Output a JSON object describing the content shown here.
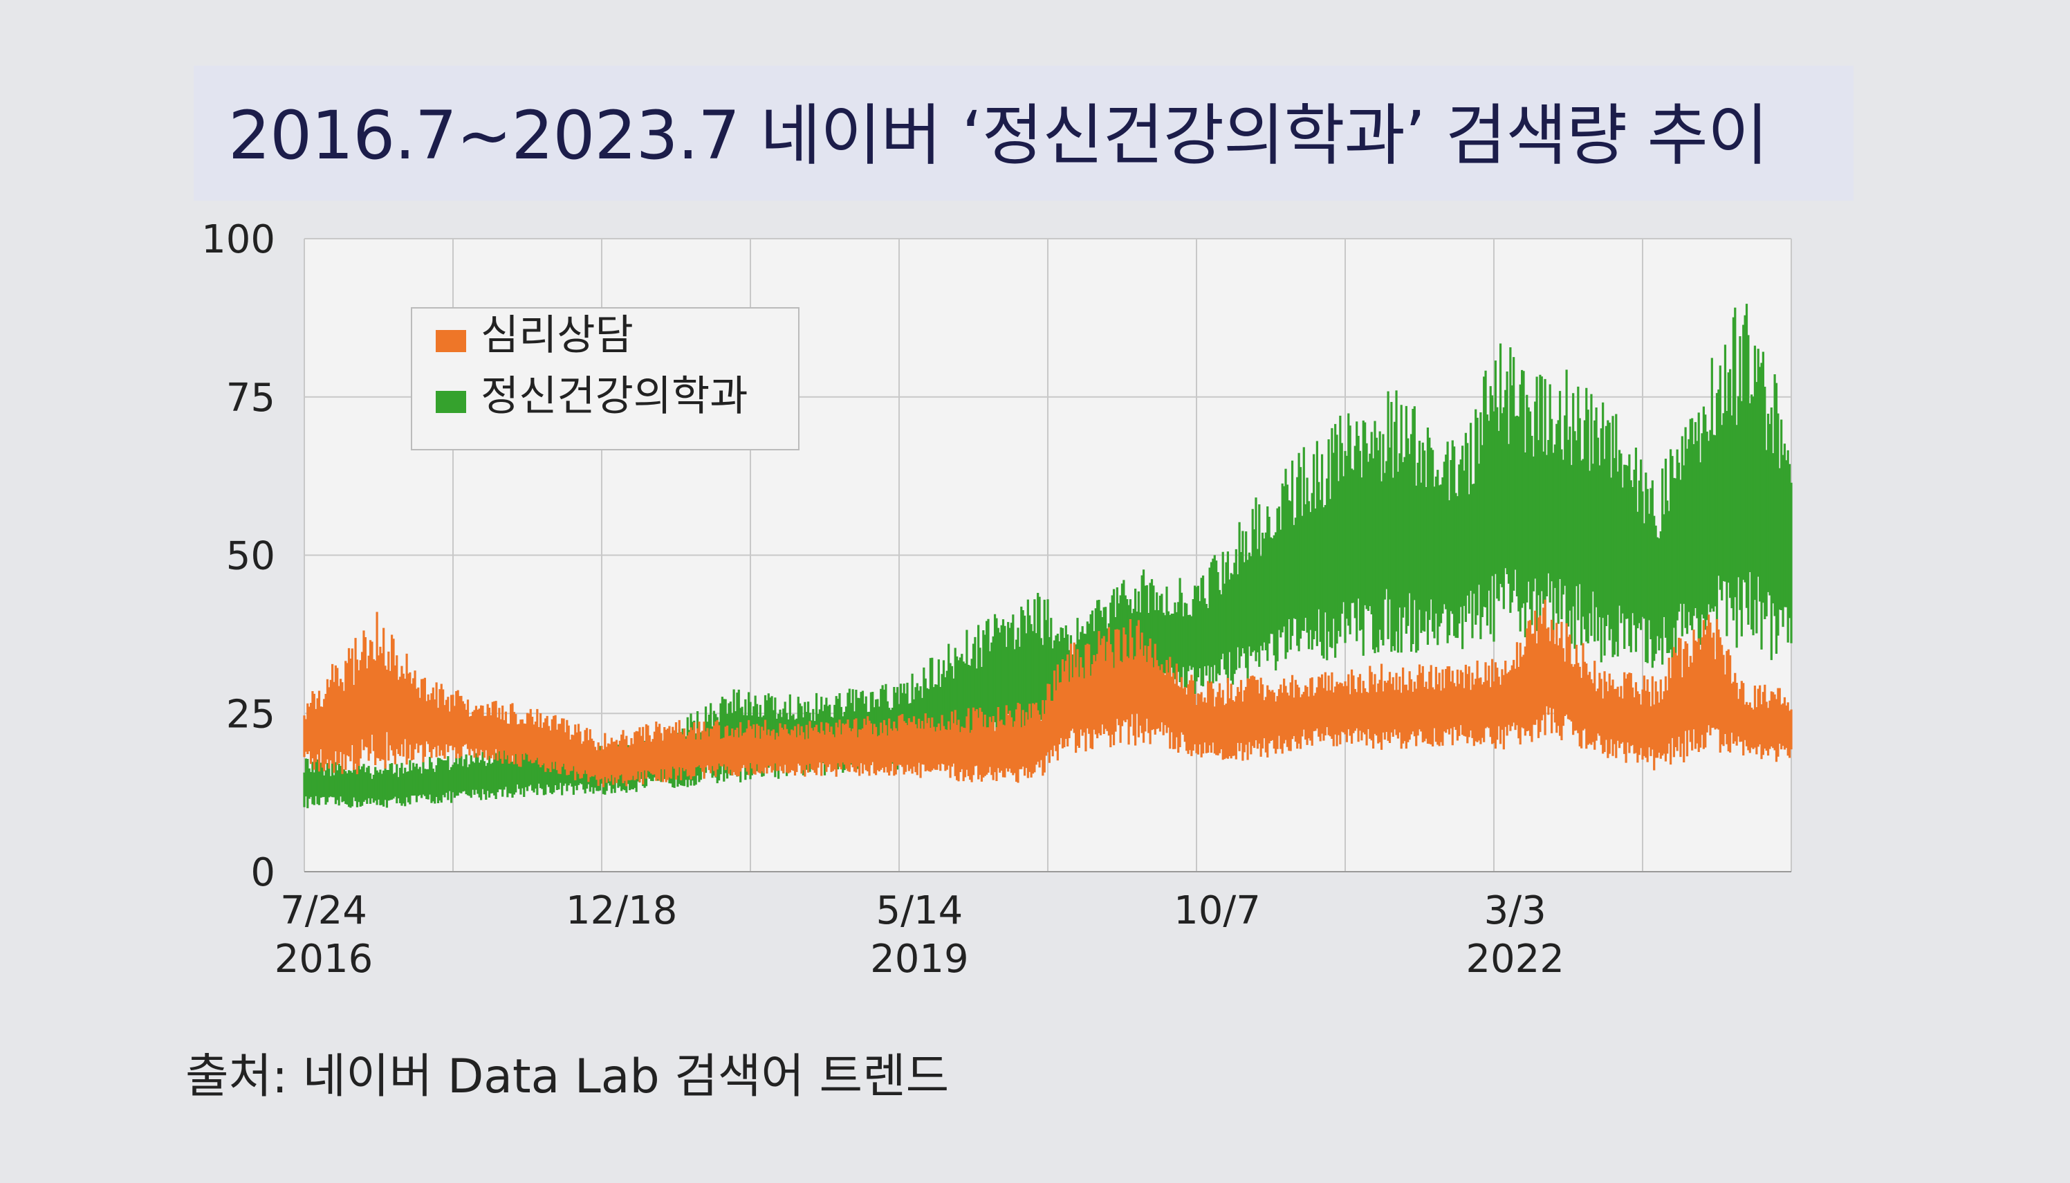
{
  "title": "2016.7~2023.7 네이버 ‘정신건강의학과’ 검색량 추이",
  "source": "출처: 네이버 Data Lab 검색어 트렌드",
  "colors": {
    "counseling": "#ee7628",
    "psychiatry": "#35a22d",
    "grid": "#c8c8c8",
    "title": "#1c1d4a"
  },
  "chart_data": {
    "type": "area",
    "title": "2016.7~2023.7 네이버 ‘정신건강의학과’ 검색량 추이",
    "xlabel": "",
    "ylabel": "",
    "ylim": [
      0,
      100
    ],
    "yticks": [
      0,
      25,
      50,
      75,
      100
    ],
    "xtick_labels": [
      {
        "x": "2016-07-24",
        "line1": "7/24",
        "line2": "2016"
      },
      {
        "x": "2017-12-18",
        "line1": "12/18",
        "line2": ""
      },
      {
        "x": "2019-05-14",
        "line1": "5/14",
        "line2": "2019"
      },
      {
        "x": "2020-10-07",
        "line1": "10/7",
        "line2": ""
      },
      {
        "x": "2022-03-03",
        "line1": "3/3",
        "line2": "2022"
      }
    ],
    "x_range": [
      "2016-07-24",
      "2023-07-24"
    ],
    "grid": true,
    "legend_position": "top-left",
    "series": [
      {
        "name": "심리상담",
        "color": "#ee7628",
        "points": [
          {
            "x": "2016-07-24",
            "low": 16,
            "high": 28
          },
          {
            "x": "2016-10-01",
            "low": 15,
            "high": 35
          },
          {
            "x": "2016-12-01",
            "low": 16,
            "high": 42
          },
          {
            "x": "2017-02-01",
            "low": 17,
            "high": 32
          },
          {
            "x": "2017-05-01",
            "low": 18,
            "high": 28
          },
          {
            "x": "2017-09-01",
            "low": 16,
            "high": 26
          },
          {
            "x": "2017-12-18",
            "low": 13,
            "high": 22
          },
          {
            "x": "2018-04-01",
            "low": 14,
            "high": 24
          },
          {
            "x": "2018-08-01",
            "low": 15,
            "high": 24
          },
          {
            "x": "2018-12-01",
            "low": 15,
            "high": 24
          },
          {
            "x": "2019-05-14",
            "low": 15,
            "high": 25
          },
          {
            "x": "2019-09-01",
            "low": 14,
            "high": 26
          },
          {
            "x": "2020-01-01",
            "low": 14,
            "high": 27
          },
          {
            "x": "2020-03-01",
            "low": 18,
            "high": 36
          },
          {
            "x": "2020-07-01",
            "low": 20,
            "high": 41
          },
          {
            "x": "2020-10-07",
            "low": 18,
            "high": 30
          },
          {
            "x": "2021-01-01",
            "low": 17,
            "high": 31
          },
          {
            "x": "2021-05-01",
            "low": 20,
            "high": 32
          },
          {
            "x": "2021-09-01",
            "low": 19,
            "high": 33
          },
          {
            "x": "2022-01-01",
            "low": 20,
            "high": 33
          },
          {
            "x": "2022-03-03",
            "low": 19,
            "high": 34
          },
          {
            "x": "2022-06-01",
            "low": 21,
            "high": 44
          },
          {
            "x": "2022-09-01",
            "low": 18,
            "high": 32
          },
          {
            "x": "2022-12-01",
            "low": 16,
            "high": 31
          },
          {
            "x": "2023-03-01",
            "low": 18,
            "high": 44
          },
          {
            "x": "2023-05-01",
            "low": 18,
            "high": 30
          },
          {
            "x": "2023-07-24",
            "low": 17,
            "high": 29
          }
        ]
      },
      {
        "name": "정신건강의학과",
        "color": "#35a22d",
        "points": [
          {
            "x": "2016-07-24",
            "low": 10,
            "high": 18
          },
          {
            "x": "2016-12-01",
            "low": 10,
            "high": 17
          },
          {
            "x": "2017-05-01",
            "low": 11,
            "high": 19
          },
          {
            "x": "2017-09-01",
            "low": 12,
            "high": 21
          },
          {
            "x": "2017-12-18",
            "low": 12,
            "high": 20
          },
          {
            "x": "2018-04-01",
            "low": 13,
            "high": 22
          },
          {
            "x": "2018-08-01",
            "low": 14,
            "high": 30
          },
          {
            "x": "2018-12-01",
            "low": 15,
            "high": 28
          },
          {
            "x": "2019-05-14",
            "low": 16,
            "high": 30
          },
          {
            "x": "2019-09-01",
            "low": 18,
            "high": 38
          },
          {
            "x": "2020-01-01",
            "low": 20,
            "high": 45
          },
          {
            "x": "2020-03-01",
            "low": 22,
            "high": 40
          },
          {
            "x": "2020-07-01",
            "low": 28,
            "high": 48
          },
          {
            "x": "2020-10-07",
            "low": 28,
            "high": 46
          },
          {
            "x": "2021-01-01",
            "low": 30,
            "high": 58
          },
          {
            "x": "2021-05-01",
            "low": 33,
            "high": 70
          },
          {
            "x": "2021-09-01",
            "low": 34,
            "high": 77
          },
          {
            "x": "2022-01-01",
            "low": 35,
            "high": 68
          },
          {
            "x": "2022-03-03",
            "low": 36,
            "high": 84
          },
          {
            "x": "2022-06-01",
            "low": 37,
            "high": 80
          },
          {
            "x": "2022-09-01",
            "low": 33,
            "high": 78
          },
          {
            "x": "2022-12-01",
            "low": 32,
            "high": 62
          },
          {
            "x": "2023-03-01",
            "low": 35,
            "high": 80
          },
          {
            "x": "2023-05-01",
            "low": 34,
            "high": 92
          },
          {
            "x": "2023-07-24",
            "low": 33,
            "high": 76
          }
        ]
      }
    ]
  }
}
